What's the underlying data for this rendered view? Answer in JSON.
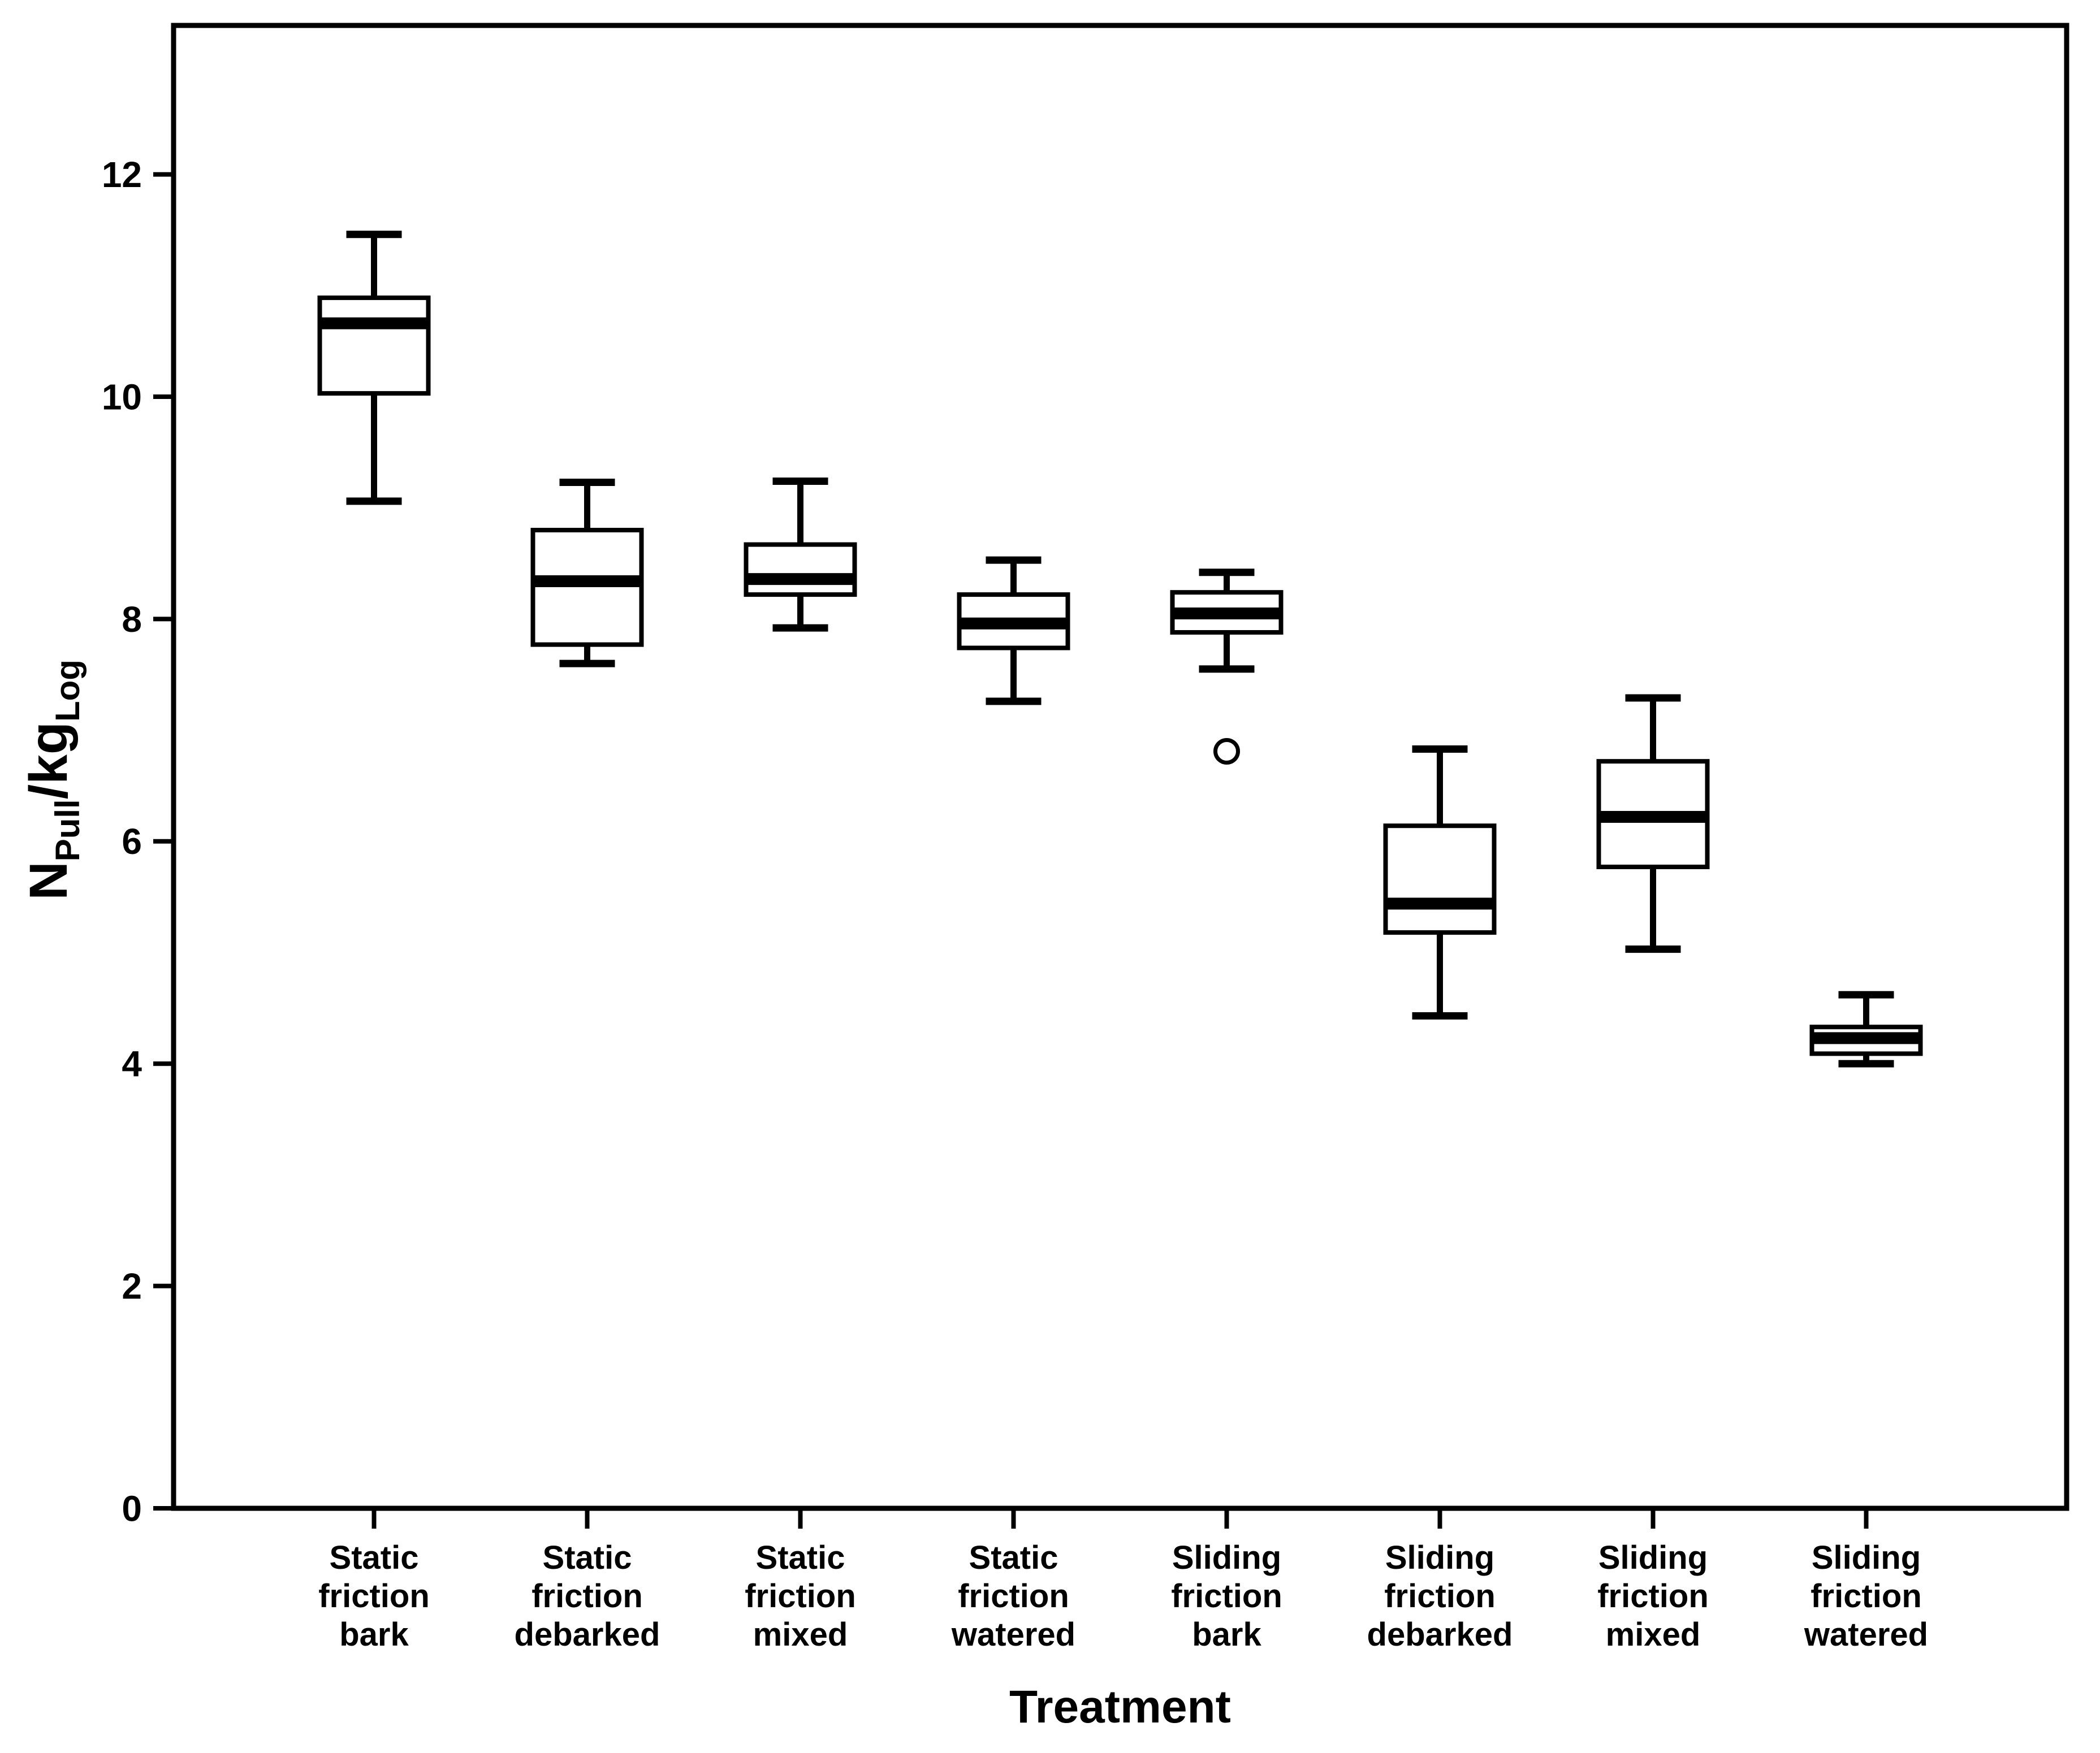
{
  "figure": {
    "background": "#ffffff",
    "line_color": "#000000"
  },
  "chart_data": {
    "type": "box",
    "title": "",
    "xlabel": "Treatment",
    "ylabel": "NPull/kgLog",
    "ylabel_rich": [
      {
        "text": "N",
        "subscript": false
      },
      {
        "text": "Pull",
        "subscript": true
      },
      {
        "text": "/kg",
        "subscript": false
      },
      {
        "text": "Log",
        "subscript": true
      }
    ],
    "ylim": [
      0,
      13.34
    ],
    "yticks": [
      0,
      2,
      4,
      6,
      8,
      10,
      12
    ],
    "grid": false,
    "legend": "none",
    "categories": [
      "Static friction bark",
      "Static friction debarked",
      "Static friction mixed",
      "Static friction watered",
      "Sliding friction bark",
      "Sliding friction debarked",
      "Sliding friction mixed",
      "Sliding friction watered"
    ],
    "category_label_lines": [
      [
        "Static",
        "friction",
        "bark"
      ],
      [
        "Static",
        "friction",
        "debarked"
      ],
      [
        "Static",
        "friction",
        "mixed"
      ],
      [
        "Static",
        "friction",
        "watered"
      ],
      [
        "Sliding",
        "friction",
        "bark"
      ],
      [
        "Sliding",
        "friction",
        "debarked"
      ],
      [
        "Sliding",
        "friction",
        "mixed"
      ],
      [
        "Sliding",
        "friction",
        "watered"
      ]
    ],
    "boxes": [
      {
        "category": "Static friction bark",
        "whisker_low": 9.06,
        "q1": 10.03,
        "median": 10.66,
        "q3": 10.89,
        "whisker_high": 11.46,
        "outliers": []
      },
      {
        "category": "Static friction debarked",
        "whisker_low": 7.6,
        "q1": 7.77,
        "median": 8.34,
        "q3": 8.8,
        "whisker_high": 9.23,
        "outliers": []
      },
      {
        "category": "Static friction mixed",
        "whisker_low": 7.92,
        "q1": 8.22,
        "median": 8.36,
        "q3": 8.67,
        "whisker_high": 9.24,
        "outliers": []
      },
      {
        "category": "Static friction watered",
        "whisker_low": 7.26,
        "q1": 7.74,
        "median": 7.96,
        "q3": 8.22,
        "whisker_high": 8.53,
        "outliers": []
      },
      {
        "category": "Sliding friction bark",
        "whisker_low": 7.55,
        "q1": 7.88,
        "median": 8.05,
        "q3": 8.24,
        "whisker_high": 8.42,
        "outliers": [
          6.81
        ]
      },
      {
        "category": "Sliding friction debarked",
        "whisker_low": 4.43,
        "q1": 5.18,
        "median": 5.44,
        "q3": 6.14,
        "whisker_high": 6.83,
        "outliers": []
      },
      {
        "category": "Sliding friction mixed",
        "whisker_low": 5.03,
        "q1": 5.77,
        "median": 6.22,
        "q3": 6.72,
        "whisker_high": 7.29,
        "outliers": []
      },
      {
        "category": "Sliding friction watered",
        "whisker_low": 4.0,
        "q1": 4.09,
        "median": 4.23,
        "q3": 4.33,
        "whisker_high": 4.62,
        "outliers": []
      }
    ]
  }
}
